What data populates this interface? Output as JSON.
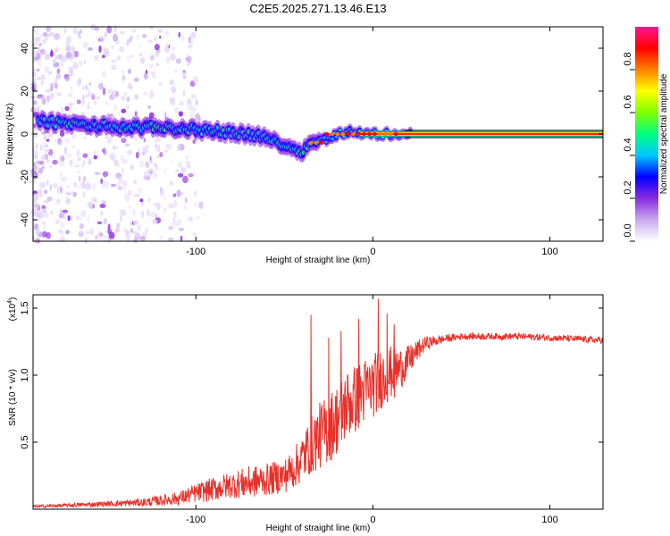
{
  "title": "C2E5.2025.271.13.46.E13",
  "chart_data": [
    {
      "type": "heatmap",
      "name": "spectrogram",
      "xlabel": "Height of straight line (km)",
      "ylabel": "Frequency (Hz)",
      "xlim": [
        -192,
        130
      ],
      "ylim": [
        -50,
        50
      ],
      "xticks": [
        -100,
        0,
        100
      ],
      "xtick_labels": [
        "-100",
        "0",
        "100"
      ],
      "yticks": [
        -40,
        -20,
        0,
        20,
        40
      ],
      "ytick_labels": [
        "-40",
        "-20",
        "0",
        "20",
        "40"
      ],
      "ridge": {
        "x": [
          -190,
          -175,
          -160,
          -140,
          -120,
          -100,
          -85,
          -70,
          -60,
          -50,
          -45,
          -40,
          -35,
          -30,
          -25,
          -20,
          -15,
          -10,
          -5,
          0,
          5,
          10,
          20,
          40,
          60,
          80,
          100,
          130
        ],
        "freq": [
          6,
          5,
          4,
          3,
          3,
          2,
          1,
          0,
          -2,
          -5,
          -7,
          -8,
          -4,
          -3,
          -2,
          0,
          1,
          1,
          0,
          0,
          0,
          0,
          0,
          0,
          0,
          0,
          0,
          0
        ]
      },
      "colorbar": {
        "label": "Normalized spectral amplitude",
        "range": [
          0,
          1
        ],
        "ticks": [
          0.0,
          0.2,
          0.4,
          0.6,
          0.8
        ],
        "tick_labels": [
          "0.0",
          "0.2",
          "0.4",
          "0.6",
          "0.8"
        ],
        "colors": [
          "#ffffff",
          "#c8a8f0",
          "#8a2be2",
          "#0000ff",
          "#00c8ff",
          "#00ff80",
          "#80ff00",
          "#ffff00",
          "#ff8000",
          "#ff0000",
          "#ff1493"
        ]
      }
    },
    {
      "type": "line",
      "name": "snr",
      "xlabel": "Height of straight line (km)",
      "ylabel": "SNR (10 * v/v)",
      "scale_label": "(x10",
      "scale_exp": "4",
      "scale_close": ")",
      "xlim": [
        -192,
        130
      ],
      "ylim": [
        0,
        1.6
      ],
      "xticks": [
        -100,
        0,
        100
      ],
      "xtick_labels": [
        "-100",
        "0",
        "100"
      ],
      "yticks": [
        0.5,
        1.0,
        1.5
      ],
      "ytick_labels": [
        "0.5",
        "1.0",
        "1.5"
      ],
      "line_color": "#e8302a",
      "x": [
        -192,
        -170,
        -150,
        -130,
        -110,
        -100,
        -90,
        -80,
        -70,
        -60,
        -50,
        -45,
        -40,
        -35,
        -30,
        -25,
        -20,
        -15,
        -10,
        -5,
        0,
        5,
        10,
        15,
        20,
        25,
        30,
        40,
        50,
        60,
        80,
        100,
        115,
        130
      ],
      "y": [
        0.02,
        0.03,
        0.04,
        0.05,
        0.08,
        0.12,
        0.15,
        0.18,
        0.2,
        0.22,
        0.25,
        0.3,
        0.38,
        0.48,
        0.55,
        0.6,
        0.68,
        0.78,
        0.82,
        0.88,
        0.92,
        0.98,
        1.02,
        1.05,
        1.1,
        1.18,
        1.24,
        1.27,
        1.29,
        1.29,
        1.29,
        1.28,
        1.27,
        1.26
      ],
      "noise": [
        0.01,
        0.015,
        0.02,
        0.03,
        0.05,
        0.07,
        0.09,
        0.1,
        0.12,
        0.12,
        0.13,
        0.15,
        0.18,
        0.22,
        0.25,
        0.26,
        0.27,
        0.27,
        0.26,
        0.25,
        0.24,
        0.23,
        0.2,
        0.16,
        0.12,
        0.08,
        0.05,
        0.03,
        0.025,
        0.025,
        0.025,
        0.025,
        0.025,
        0.025
      ],
      "spikes": [
        {
          "x": -35,
          "y": 1.45
        },
        {
          "x": -25,
          "y": 1.28
        },
        {
          "x": -18,
          "y": 1.33
        },
        {
          "x": -8,
          "y": 1.42
        },
        {
          "x": 3,
          "y": 1.57
        },
        {
          "x": 8,
          "y": 1.46
        },
        {
          "x": 12,
          "y": 1.38
        }
      ]
    }
  ]
}
